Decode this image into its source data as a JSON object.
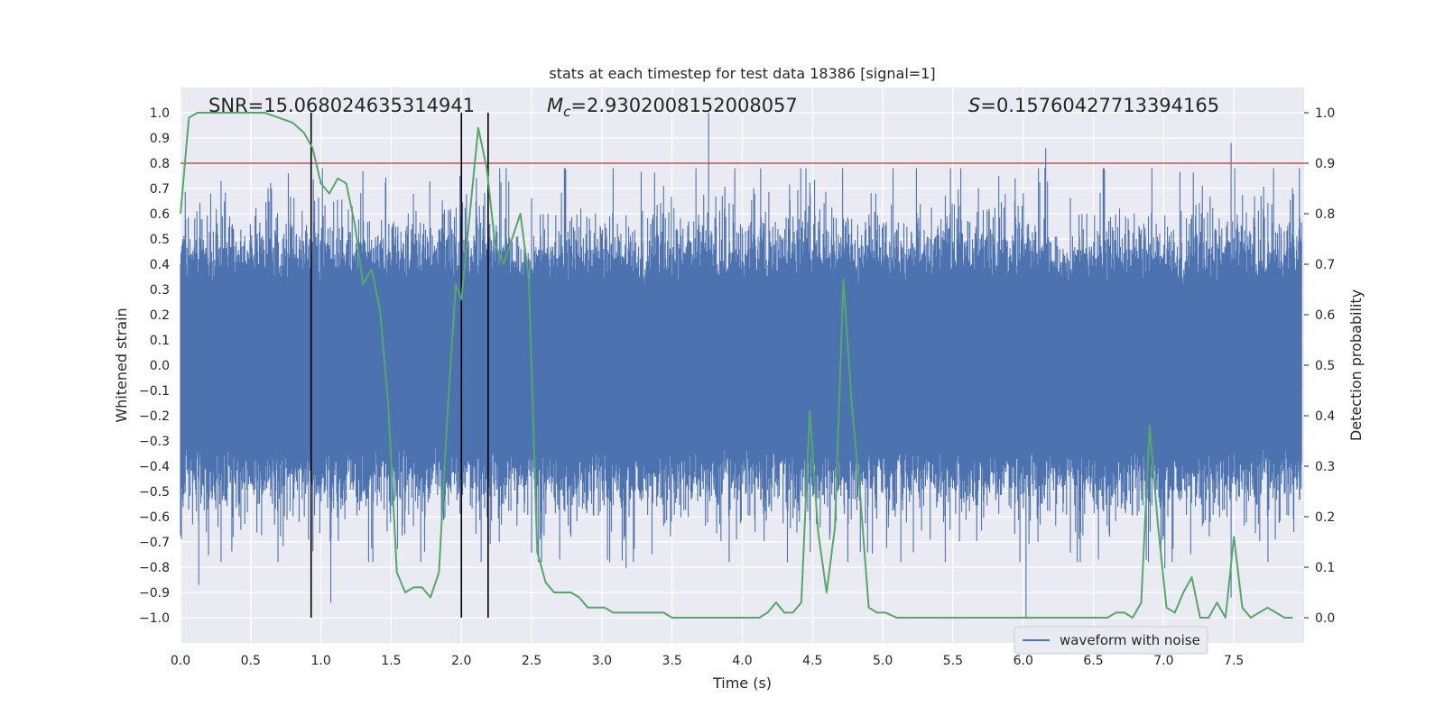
{
  "chart_data": {
    "type": "line",
    "title": "stats at each timestep for test data 18386 [signal=1]",
    "xlabel": "Time (s)",
    "ylabel_left": "Whitened strain",
    "ylabel_right": "Detection probability",
    "xlim": [
      0.0,
      8.0
    ],
    "ylim_left": [
      -1.1,
      1.1
    ],
    "ylim_right": [
      -0.05,
      1.05
    ],
    "x_ticks": [
      "0.0",
      "0.5",
      "1.0",
      "1.5",
      "2.0",
      "2.5",
      "3.0",
      "3.5",
      "4.0",
      "4.5",
      "5.0",
      "5.5",
      "6.0",
      "6.5",
      "7.0",
      "7.5"
    ],
    "y_left_ticks": [
      "1.0",
      "0.9",
      "0.8",
      "0.7",
      "0.6",
      "0.5",
      "0.4",
      "0.3",
      "0.2",
      "0.1",
      "0.0",
      "−0.1",
      "−0.2",
      "−0.3",
      "−0.4",
      "−0.5",
      "−0.6",
      "−0.7",
      "−0.8",
      "−0.9",
      "−1.0"
    ],
    "y_right_ticks": [
      "1.0",
      "0.9",
      "0.8",
      "0.7",
      "0.6",
      "0.5",
      "0.4",
      "0.3",
      "0.2",
      "0.1",
      "0.0"
    ],
    "grid": true,
    "legend_position": "lower-right",
    "annotations": {
      "snr_prefix": "SNR=",
      "snr_value": "15.068024635314941",
      "mc_symbol": "M",
      "mc_subscript": "c",
      "mc_value": "=2.9302008152008057",
      "s_symbol": "S",
      "s_value": "=0.15760427713394165"
    },
    "series": [
      {
        "name": "waveform with noise",
        "axis": "left",
        "color": "#4c72b0",
        "description_note": "dense noisy whitened strain, sampled at 8 s span",
        "peak_markers": [
          {
            "x": 3.76,
            "y": 1.0
          },
          {
            "x": 6.16,
            "y": 0.86
          },
          {
            "x": 6.02,
            "y": -1.0
          },
          {
            "x": 7.48,
            "y": 0.88
          },
          {
            "x": 7.48,
            "y": -0.92
          },
          {
            "x": 1.07,
            "y": -0.94
          },
          {
            "x": 0.13,
            "y": -0.87
          }
        ]
      },
      {
        "axis": "right",
        "color": "#55a868",
        "x": [
          0.0,
          0.06,
          0.12,
          0.2,
          0.3,
          0.45,
          0.6,
          0.7,
          0.8,
          0.88,
          0.94,
          1.0,
          1.06,
          1.12,
          1.18,
          1.24,
          1.3,
          1.36,
          1.42,
          1.48,
          1.54,
          1.6,
          1.66,
          1.72,
          1.78,
          1.84,
          1.9,
          1.96,
          2.0,
          2.06,
          2.12,
          2.18,
          2.24,
          2.3,
          2.36,
          2.42,
          2.48,
          2.54,
          2.6,
          2.66,
          2.72,
          2.78,
          2.84,
          2.9,
          2.96,
          3.02,
          3.08,
          3.14,
          3.2,
          3.26,
          3.32,
          3.38,
          3.44,
          3.5,
          3.6,
          3.7,
          3.8,
          3.9,
          4.0,
          4.06,
          4.12,
          4.18,
          4.24,
          4.3,
          4.36,
          4.42,
          4.48,
          4.54,
          4.6,
          4.66,
          4.72,
          4.78,
          4.84,
          4.9,
          4.96,
          5.02,
          5.1,
          5.2,
          5.4,
          5.6,
          5.8,
          5.9,
          6.0,
          6.1,
          6.2,
          6.3,
          6.4,
          6.5,
          6.6,
          6.66,
          6.72,
          6.78,
          6.84,
          6.9,
          6.96,
          7.02,
          7.08,
          7.14,
          7.2,
          7.26,
          7.32,
          7.38,
          7.44,
          7.5,
          7.56,
          7.62,
          7.68,
          7.74,
          7.8,
          7.86,
          7.92
        ],
        "values": [
          0.8,
          0.99,
          1.0,
          1.0,
          1.0,
          1.0,
          1.0,
          0.99,
          0.98,
          0.96,
          0.93,
          0.86,
          0.84,
          0.87,
          0.86,
          0.78,
          0.66,
          0.69,
          0.61,
          0.42,
          0.09,
          0.05,
          0.06,
          0.06,
          0.04,
          0.09,
          0.4,
          0.66,
          0.63,
          0.8,
          0.97,
          0.89,
          0.74,
          0.7,
          0.75,
          0.8,
          0.67,
          0.13,
          0.07,
          0.05,
          0.05,
          0.05,
          0.04,
          0.02,
          0.02,
          0.02,
          0.01,
          0.01,
          0.01,
          0.01,
          0.01,
          0.01,
          0.01,
          0.0,
          0.0,
          0.0,
          0.0,
          0.0,
          0.0,
          0.0,
          0.0,
          0.01,
          0.03,
          0.01,
          0.01,
          0.03,
          0.41,
          0.17,
          0.05,
          0.18,
          0.67,
          0.42,
          0.24,
          0.02,
          0.01,
          0.01,
          0.0,
          0.0,
          0.0,
          0.0,
          0.0,
          0.0,
          0.0,
          0.0,
          0.0,
          0.0,
          0.0,
          0.0,
          0.0,
          0.01,
          0.01,
          0.0,
          0.03,
          0.38,
          0.18,
          0.02,
          0.01,
          0.05,
          0.08,
          0.0,
          0.0,
          0.03,
          0.0,
          0.16,
          0.02,
          0.0,
          0.01,
          0.02,
          0.01,
          0.0,
          0.0
        ]
      }
    ],
    "threshold_line": {
      "axis": "left",
      "y": 0.8,
      "color": "#c44e52"
    },
    "vertical_markers": {
      "x": [
        0.93,
        2.0,
        2.19
      ],
      "y_range": [
        -1.0,
        1.0
      ],
      "color": "#000000"
    }
  }
}
